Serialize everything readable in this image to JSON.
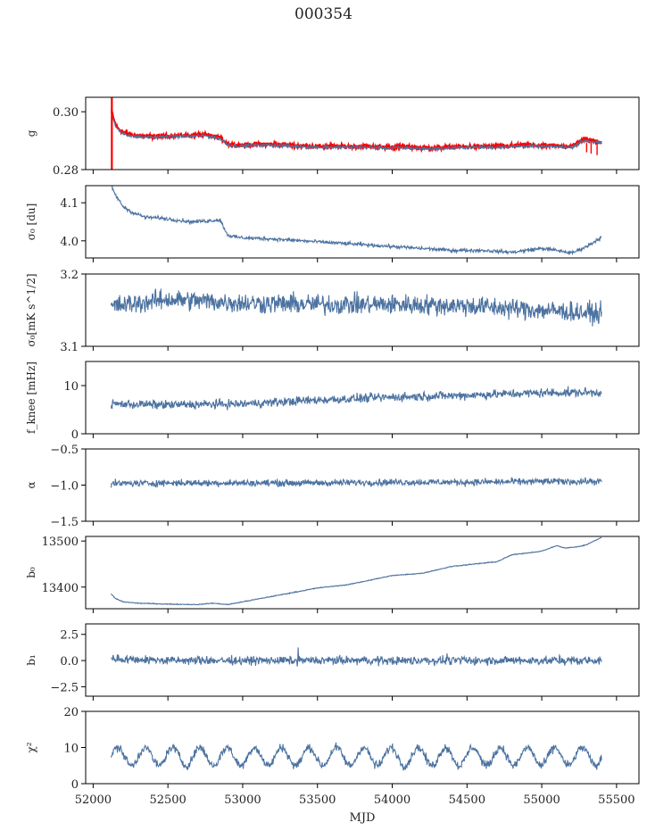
{
  "figure": {
    "title": "000354",
    "xlabel": "MJD"
  },
  "chart_data": {
    "type": "line",
    "title": "000354",
    "xlabel": "MJD",
    "x_range": [
      51950,
      55650
    ],
    "x_ticks": [
      52000,
      52500,
      53000,
      53500,
      54000,
      54500,
      55000,
      55500
    ],
    "x_tick_labels": [
      "52000",
      "52500",
      "53000",
      "53500",
      "54000",
      "54500",
      "55000",
      "55500"
    ],
    "mjd_span": [
      52120,
      55400
    ],
    "grid": false,
    "line_color": "#4c72a0",
    "overlay_color": "#ff0000",
    "panels": [
      {
        "id": "g",
        "ylabel": "g",
        "ylim": [
          0.28,
          0.305
        ],
        "yticks": [
          0.28,
          0.3
        ],
        "ytick_labels": [
          "0.28",
          "0.30"
        ],
        "series": [
          {
            "x": [
              52120,
              52140,
              52160,
              52200,
              52260,
              52350,
              52450,
              52550,
              52650,
              52750,
              52850,
              52900,
              52950,
              53000,
              53150,
              53300,
              53500,
              53650,
              53800,
              53950,
              54100,
              54250,
              54400,
              54550,
              54700,
              54800,
              54900,
              55000,
              55100,
              55200,
              55280,
              55320,
              55400
            ],
            "y": [
              0.301,
              0.297,
              0.2945,
              0.293,
              0.292,
              0.2915,
              0.2915,
              0.2918,
              0.2918,
              0.292,
              0.291,
              0.289,
              0.2885,
              0.2885,
              0.2888,
              0.2885,
              0.288,
              0.288,
              0.288,
              0.2878,
              0.2878,
              0.2875,
              0.2878,
              0.288,
              0.288,
              0.2882,
              0.2885,
              0.2882,
              0.2882,
              0.288,
              0.2905,
              0.2902,
              0.2895
            ],
            "noise": 0.0006,
            "style": "overlay-red"
          },
          {
            "x": [
              52120,
              52140,
              52160,
              52200,
              52260,
              52350,
              52450,
              52550,
              52650,
              52750,
              52850,
              52900,
              52950,
              53000,
              53150,
              53300,
              53500,
              53650,
              53800,
              53950,
              54100,
              54250,
              54400,
              54550,
              54700,
              54800,
              54900,
              55000,
              55100,
              55200,
              55280,
              55320,
              55400
            ],
            "y": [
              0.3,
              0.2965,
              0.294,
              0.2925,
              0.2915,
              0.2912,
              0.2912,
              0.2915,
              0.2915,
              0.2917,
              0.2907,
              0.2886,
              0.2882,
              0.2882,
              0.2885,
              0.2882,
              0.2877,
              0.2877,
              0.2877,
              0.2875,
              0.2875,
              0.2872,
              0.2875,
              0.2877,
              0.2877,
              0.2879,
              0.2882,
              0.2879,
              0.2879,
              0.2877,
              0.29,
              0.2898,
              0.2892
            ],
            "noise": 0.0005,
            "style": "main"
          }
        ]
      },
      {
        "id": "sigma0-du",
        "ylabel": "σ₀ [du]",
        "ylim": [
          3.955,
          4.145
        ],
        "yticks": [
          4.0,
          4.1
        ],
        "ytick_labels": [
          "4.0",
          "4.1"
        ],
        "series": [
          {
            "x": [
              52120,
              52150,
              52200,
              52260,
              52350,
              52450,
              52550,
              52650,
              52750,
              52850,
              52880,
              52900,
              52950,
              53000,
              53200,
              53400,
              53600,
              53800,
              54000,
              54200,
              54400,
              54600,
              54800,
              55000,
              55100,
              55200,
              55300,
              55400
            ],
            "y": [
              4.145,
              4.12,
              4.09,
              4.075,
              4.062,
              4.06,
              4.055,
              4.05,
              4.052,
              4.055,
              4.03,
              4.015,
              4.01,
              4.008,
              4.005,
              4.0,
              3.995,
              3.99,
              3.985,
              3.98,
              3.975,
              3.975,
              3.97,
              3.98,
              3.975,
              3.968,
              3.985,
              4.01
            ],
            "noise": 0.004,
            "style": "main"
          }
        ]
      },
      {
        "id": "sigma0-mk",
        "ylabel": "σ₀[mK s^1/2]",
        "ylim": [
          3.1,
          3.2
        ],
        "yticks": [
          3.1,
          3.2
        ],
        "ytick_labels": [
          "3.1",
          "3.2"
        ],
        "series": [
          {
            "x": [
              52120,
              52500,
              53000,
              53500,
              54000,
              54500,
              55000,
              55400
            ],
            "y": [
              3.155,
              3.165,
              3.16,
              3.158,
              3.158,
              3.156,
              3.15,
              3.145
            ],
            "noise": 0.012,
            "style": "main"
          }
        ]
      },
      {
        "id": "fknee",
        "ylabel": "f_knee [mHz]",
        "ylim": [
          0,
          15
        ],
        "yticks": [
          0,
          10
        ],
        "ytick_labels": [
          "0",
          "10"
        ],
        "series": [
          {
            "x": [
              52120,
              52500,
              53000,
              53500,
              54000,
              54500,
              55000,
              55400
            ],
            "y": [
              6.2,
              6.0,
              6.2,
              7.0,
              7.6,
              8.0,
              8.5,
              8.6
            ],
            "noise": 0.8,
            "style": "main"
          }
        ]
      },
      {
        "id": "alpha",
        "ylabel": "α",
        "ylim": [
          -1.5,
          -0.5
        ],
        "yticks": [
          -1.5,
          -1.0,
          -0.5
        ],
        "ytick_labels": [
          "−1.5",
          "−1.0",
          "−0.5"
        ],
        "series": [
          {
            "x": [
              52120,
              52500,
              53000,
              53500,
              54000,
              54500,
              55000,
              55400
            ],
            "y": [
              -0.98,
              -0.97,
              -0.97,
              -0.97,
              -0.96,
              -0.96,
              -0.95,
              -0.95
            ],
            "noise": 0.04,
            "style": "main"
          }
        ]
      },
      {
        "id": "b0",
        "ylabel": "b₀",
        "ylim": [
          13353,
          13510
        ],
        "yticks": [
          13400,
          13500
        ],
        "ytick_labels": [
          "13400",
          "13500"
        ],
        "series": [
          {
            "x": [
              52120,
              52150,
              52200,
              52300,
              52500,
              52700,
              52800,
              52900,
              53000,
              53200,
              53500,
              53700,
              54000,
              54200,
              54400,
              54700,
              54800,
              55000,
              55100,
              55150,
              55200,
              55250,
              55300,
              55400
            ],
            "y": [
              13385,
              13375,
              13368,
              13365,
              13363,
              13362,
              13365,
              13362,
              13368,
              13380,
              13398,
              13405,
              13425,
              13430,
              13445,
              13455,
              13470,
              13478,
              13490,
              13485,
              13486,
              13488,
              13492,
              13508
            ],
            "noise": 0.8,
            "style": "main"
          }
        ]
      },
      {
        "id": "b1",
        "ylabel": "b₁",
        "ylim": [
          -3.4,
          3.5
        ],
        "yticks": [
          -2.5,
          0.0,
          2.5
        ],
        "ytick_labels": [
          "−2.5",
          "0.0",
          "2.5"
        ],
        "series": [
          {
            "x": [
              52120,
              52500,
              53000,
              53500,
              54000,
              54500,
              55000,
              55400
            ],
            "y": [
              0.2,
              0.0,
              0.0,
              0.0,
              0.0,
              0.0,
              0.0,
              0.0
            ],
            "noise": 0.35,
            "style": "main"
          }
        ]
      },
      {
        "id": "chi2",
        "ylabel": "χ²",
        "ylim": [
          0,
          20
        ],
        "yticks": [
          0,
          10,
          20
        ],
        "ytick_labels": [
          "0",
          "10",
          "20"
        ],
        "series": [
          {
            "x": [
              52120,
              52500,
              53000,
              53500,
              54000,
              54500,
              55000,
              55400
            ],
            "y": [
              7.5,
              7.5,
              7.5,
              7.5,
              7.5,
              7.5,
              7.5,
              7.5
            ],
            "periodic": {
              "amplitude": 2.5,
              "period": 182.6
            },
            "noise": 1.0,
            "style": "main"
          }
        ]
      }
    ]
  }
}
